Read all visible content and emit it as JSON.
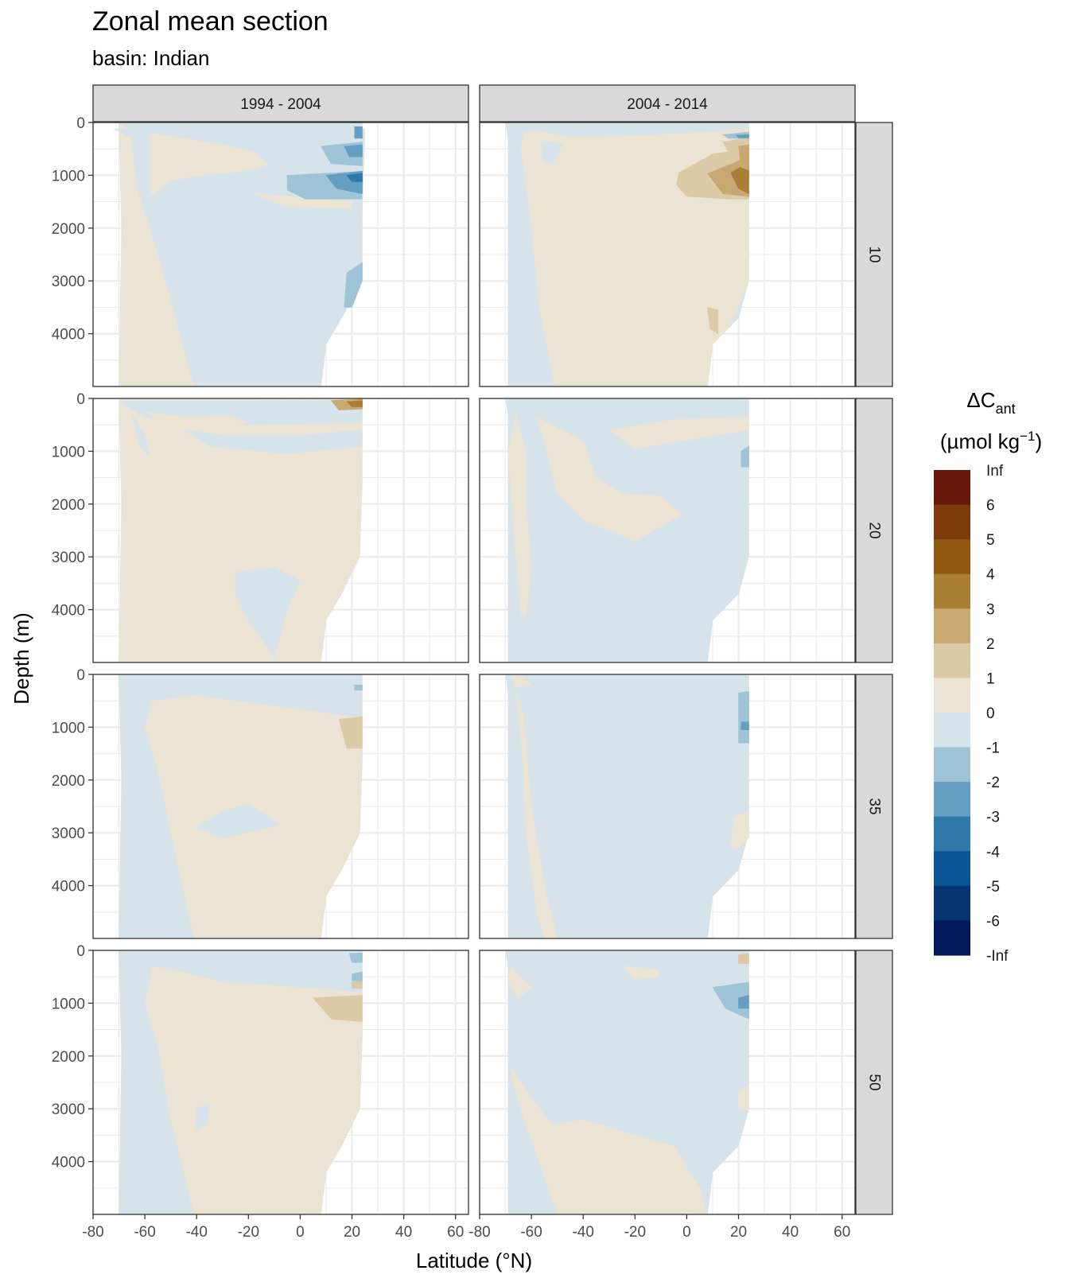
{
  "title": "Zonal mean section",
  "subtitle": "basin: Indian",
  "chart_data": {
    "type": "contour",
    "title": "Zonal mean section",
    "subtitle": "basin: Indian",
    "xlabel": "Latitude (°N)",
    "ylabel": "Depth (m)",
    "xlim": [
      -80,
      65
    ],
    "ylim": [
      5000,
      0
    ],
    "x_ticks": [
      -80,
      -60,
      -40,
      -20,
      0,
      20,
      40,
      60
    ],
    "x_tick_labels": [
      "-80",
      "-60",
      "-40",
      "-20",
      "0",
      "20",
      "40",
      "60"
    ],
    "y_ticks": [
      0,
      1000,
      2000,
      3000,
      4000
    ],
    "y_tick_labels": [
      "0",
      "1000",
      "2000",
      "3000",
      "4000"
    ],
    "columns": [
      "1994 - 2004",
      "2004 - 2014"
    ],
    "rows": [
      "10",
      "20",
      "35",
      "50"
    ],
    "legend": {
      "title_main": "ΔC",
      "title_sub": "ant",
      "title_unit_pre": "(µmol kg",
      "title_unit_sup": "−1",
      "title_unit_post": ")",
      "position": "right",
      "labels": [
        "Inf",
        "6",
        "5",
        "4",
        "3",
        "2",
        "1",
        "0",
        "-1",
        "-2",
        "-3",
        "-4",
        "-5",
        "-6",
        "-Inf"
      ],
      "colors": [
        "#67180a",
        "#7d3a0a",
        "#8f5810",
        "#aa7f35",
        "#c8a871",
        "#dccaa6",
        "#ebe3d3",
        "#d6e3ea",
        "#9fc3d7",
        "#649fc2",
        "#2f78aa",
        "#0b5596",
        "#053572",
        "#021a5c"
      ]
    },
    "colors": {
      "pos_1": "#ebe3d3",
      "pos_2": "#dccaa6",
      "pos_3": "#c8a871",
      "pos_4": "#aa7f35",
      "pos_5": "#8f5810",
      "pos_6": "#7d3a0a",
      "neg_1": "#d6e3ea",
      "neg_2": "#9fc3d7",
      "neg_3": "#649fc2",
      "neg_4": "#2f78aa",
      "strip_fill": "#d9d9d9",
      "grid": "#ebebeb"
    }
  }
}
